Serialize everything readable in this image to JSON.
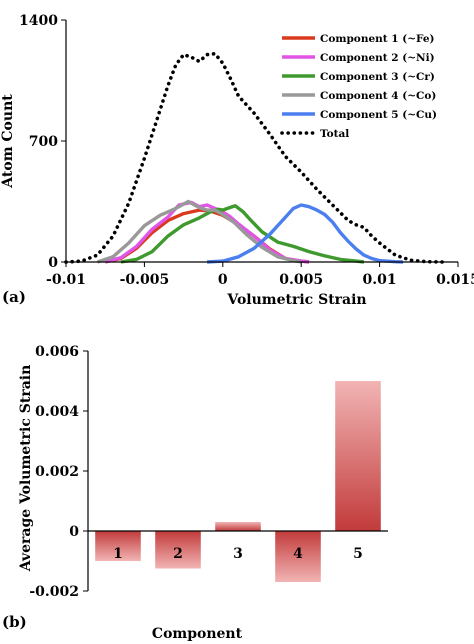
{
  "panel_a_label": "(a)",
  "panel_b_label": "(b)",
  "chart_data": [
    {
      "type": "line",
      "xlabel": "Volumetric Strain",
      "ylabel": "Atom Count",
      "xlim": [
        -0.01,
        0.015
      ],
      "ylim": [
        0,
        1400
      ],
      "x_ticks": [
        "-0.01",
        "-0.005",
        "0",
        "0.005",
        "0.01",
        "0.015"
      ],
      "x_tick_values": [
        -0.01,
        -0.005,
        0,
        0.005,
        0.01,
        0.015
      ],
      "y_ticks": [
        "0",
        "700",
        "1400"
      ],
      "y_tick_values": [
        0,
        700,
        1400
      ],
      "legend_position": "top-right",
      "grid": false,
      "series": [
        {
          "name": "Component 1 (~Fe)",
          "color": "#d93a1e",
          "style": "solid",
          "points": [
            [
              -0.0075,
              0
            ],
            [
              -0.0065,
              20
            ],
            [
              -0.0055,
              80
            ],
            [
              -0.0045,
              170
            ],
            [
              -0.0035,
              240
            ],
            [
              -0.0025,
              280
            ],
            [
              -0.0015,
              300
            ],
            [
              -0.0008,
              295
            ],
            [
              0,
              270
            ],
            [
              0.001,
              215
            ],
            [
              0.002,
              150
            ],
            [
              0.003,
              75
            ],
            [
              0.004,
              20
            ],
            [
              0.005,
              5
            ],
            [
              0.0055,
              0
            ]
          ]
        },
        {
          "name": "Component 2 (~Ni)",
          "color": "#e155e6",
          "style": "solid",
          "points": [
            [
              -0.0075,
              0
            ],
            [
              -0.0065,
              25
            ],
            [
              -0.0055,
              90
            ],
            [
              -0.0045,
              190
            ],
            [
              -0.0035,
              260
            ],
            [
              -0.0028,
              330
            ],
            [
              -0.002,
              345
            ],
            [
              -0.0015,
              320
            ],
            [
              -0.001,
              330
            ],
            [
              -0.0005,
              310
            ],
            [
              0,
              290
            ],
            [
              0.0005,
              260
            ],
            [
              0.001,
              220
            ],
            [
              0.002,
              150
            ],
            [
              0.003,
              70
            ],
            [
              0.004,
              20
            ],
            [
              0.005,
              5
            ],
            [
              0.0055,
              0
            ]
          ]
        },
        {
          "name": "Component 3 (~Cr)",
          "color": "#3e9a2c",
          "style": "solid",
          "points": [
            [
              -0.0065,
              0
            ],
            [
              -0.0055,
              15
            ],
            [
              -0.0045,
              60
            ],
            [
              -0.0035,
              150
            ],
            [
              -0.0025,
              215
            ],
            [
              -0.0015,
              255
            ],
            [
              -0.0008,
              290
            ],
            [
              -0.0003,
              305
            ],
            [
              0,
              300
            ],
            [
              0.0003,
              310
            ],
            [
              0.0008,
              325
            ],
            [
              0.0013,
              290
            ],
            [
              0.0018,
              240
            ],
            [
              0.0025,
              175
            ],
            [
              0.0035,
              115
            ],
            [
              0.0045,
              90
            ],
            [
              0.0055,
              60
            ],
            [
              0.0065,
              35
            ],
            [
              0.0075,
              15
            ],
            [
              0.0085,
              5
            ],
            [
              0.009,
              0
            ]
          ]
        },
        {
          "name": "Component 4 (~Co)",
          "color": "#999999",
          "style": "solid",
          "points": [
            [
              -0.008,
              0
            ],
            [
              -0.007,
              30
            ],
            [
              -0.006,
              110
            ],
            [
              -0.005,
              210
            ],
            [
              -0.004,
              270
            ],
            [
              -0.003,
              310
            ],
            [
              -0.0022,
              350
            ],
            [
              -0.0015,
              315
            ],
            [
              -0.001,
              300
            ],
            [
              -0.0005,
              300
            ],
            [
              0,
              275
            ],
            [
              0.0007,
              230
            ],
            [
              0.0015,
              160
            ],
            [
              0.0025,
              85
            ],
            [
              0.0035,
              30
            ],
            [
              0.0045,
              8
            ],
            [
              0.005,
              0
            ]
          ]
        },
        {
          "name": "Component 5 (~Cu)",
          "color": "#4b7ff0",
          "style": "solid",
          "points": [
            [
              -0.001,
              0
            ],
            [
              0,
              5
            ],
            [
              0.001,
              30
            ],
            [
              0.002,
              80
            ],
            [
              0.003,
              160
            ],
            [
              0.004,
              260
            ],
            [
              0.0045,
              310
            ],
            [
              0.005,
              330
            ],
            [
              0.0055,
              320
            ],
            [
              0.006,
              300
            ],
            [
              0.0065,
              275
            ],
            [
              0.007,
              230
            ],
            [
              0.0075,
              170
            ],
            [
              0.008,
              120
            ],
            [
              0.0085,
              75
            ],
            [
              0.009,
              40
            ],
            [
              0.0095,
              20
            ],
            [
              0.01,
              8
            ],
            [
              0.011,
              2
            ],
            [
              0.0115,
              0
            ]
          ]
        },
        {
          "name": "Total",
          "color": "#000000",
          "style": "dotted",
          "points": [
            [
              -0.01,
              0
            ],
            [
              -0.009,
              5
            ],
            [
              -0.008,
              40
            ],
            [
              -0.007,
              150
            ],
            [
              -0.006,
              340
            ],
            [
              -0.005,
              600
            ],
            [
              -0.004,
              880
            ],
            [
              -0.0035,
              1020
            ],
            [
              -0.003,
              1140
            ],
            [
              -0.0025,
              1200
            ],
            [
              -0.002,
              1185
            ],
            [
              -0.0015,
              1160
            ],
            [
              -0.001,
              1200
            ],
            [
              -0.0005,
              1205
            ],
            [
              0,
              1150
            ],
            [
              0.0005,
              1060
            ],
            [
              0.001,
              960
            ],
            [
              0.002,
              860
            ],
            [
              0.003,
              740
            ],
            [
              0.004,
              610
            ],
            [
              0.005,
              520
            ],
            [
              0.006,
              420
            ],
            [
              0.007,
              330
            ],
            [
              0.008,
              240
            ],
            [
              0.0085,
              215
            ],
            [
              0.009,
              200
            ],
            [
              0.0095,
              150
            ],
            [
              0.01,
              110
            ],
            [
              0.011,
              40
            ],
            [
              0.012,
              10
            ],
            [
              0.013,
              2
            ],
            [
              0.014,
              0
            ]
          ]
        }
      ]
    },
    {
      "type": "bar",
      "xlabel": "Component",
      "ylabel": "Average Volumetric Strain",
      "categories": [
        "1",
        "2",
        "3",
        "4",
        "5"
      ],
      "values": [
        -0.001,
        -0.00125,
        0.0003,
        -0.0017,
        0.005
      ],
      "ylim": [
        -0.002,
        0.006
      ],
      "y_ticks": [
        "-0.002",
        "0",
        "0.002",
        "0.004",
        "0.006"
      ],
      "y_tick_values": [
        -0.002,
        0,
        0.002,
        0.004,
        0.006
      ],
      "bar_color_light": "#f2b4b4",
      "bar_color_dark": "#c23b3b",
      "grid": false
    }
  ]
}
